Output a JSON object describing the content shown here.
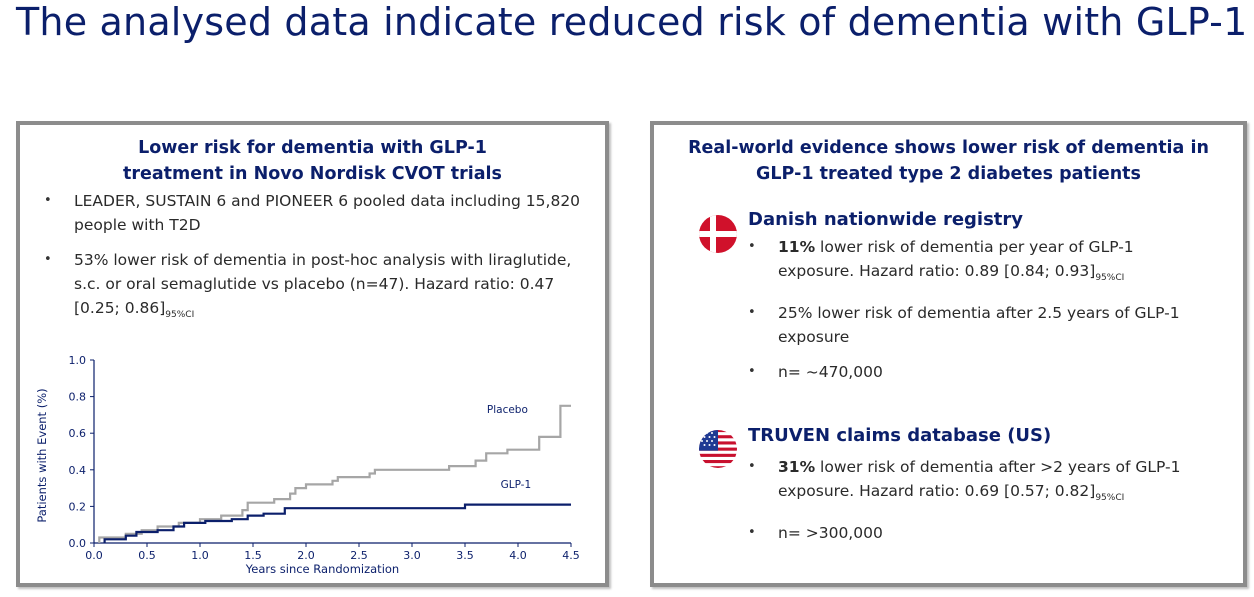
{
  "title": "The analysed data indicate reduced risk of dementia with GLP-1",
  "left_panel": {
    "heading_line1": "Lower risk for dementia with GLP-1",
    "heading_line2": "treatment in Novo Nordisk CVOT trials",
    "bullet1": "LEADER, SUSTAIN 6 and PIONEER 6 pooled data including 15,820 people with T2D",
    "bullet2_text": "53% lower risk of dementia in post-hoc analysis with liraglutide, s.c. or oral semaglutide vs placebo (n=47). Hazard ratio: 0.47 [0.25; 0.86]",
    "bullet2_sub": "95%CI"
  },
  "chart_data": {
    "type": "line",
    "xlabel": "Years since Randomization",
    "ylabel": "Patients with Event (%)",
    "xlim": [
      0,
      4.5
    ],
    "ylim": [
      0,
      1.0
    ],
    "xticks": [
      "0.0",
      "0.5",
      "1.0",
      "1.5",
      "2.0",
      "2.5",
      "3.0",
      "3.5",
      "4.0",
      "4.5"
    ],
    "yticks": [
      "0.0",
      "0.2",
      "0.4",
      "0.6",
      "0.8",
      "1.0"
    ],
    "grid": false,
    "series": [
      {
        "name": "Placebo",
        "color": "#a6a6a6",
        "points": [
          [
            0.05,
            0
          ],
          [
            0.05,
            0.03
          ],
          [
            0.3,
            0.03
          ],
          [
            0.3,
            0.05
          ],
          [
            0.45,
            0.05
          ],
          [
            0.45,
            0.07
          ],
          [
            0.6,
            0.07
          ],
          [
            0.6,
            0.09
          ],
          [
            0.8,
            0.09
          ],
          [
            0.8,
            0.11
          ],
          [
            1.0,
            0.11
          ],
          [
            1.0,
            0.13
          ],
          [
            1.2,
            0.13
          ],
          [
            1.2,
            0.15
          ],
          [
            1.4,
            0.15
          ],
          [
            1.4,
            0.18
          ],
          [
            1.45,
            0.18
          ],
          [
            1.45,
            0.22
          ],
          [
            1.7,
            0.22
          ],
          [
            1.7,
            0.24
          ],
          [
            1.85,
            0.24
          ],
          [
            1.85,
            0.27
          ],
          [
            1.9,
            0.27
          ],
          [
            1.9,
            0.3
          ],
          [
            2.0,
            0.3
          ],
          [
            2.0,
            0.32
          ],
          [
            2.25,
            0.32
          ],
          [
            2.25,
            0.34
          ],
          [
            2.3,
            0.34
          ],
          [
            2.3,
            0.36
          ],
          [
            2.6,
            0.36
          ],
          [
            2.6,
            0.38
          ],
          [
            2.65,
            0.38
          ],
          [
            2.65,
            0.4
          ],
          [
            3.35,
            0.4
          ],
          [
            3.35,
            0.42
          ],
          [
            3.6,
            0.42
          ],
          [
            3.6,
            0.45
          ],
          [
            3.7,
            0.45
          ],
          [
            3.7,
            0.49
          ],
          [
            3.9,
            0.49
          ],
          [
            3.9,
            0.51
          ],
          [
            4.2,
            0.51
          ],
          [
            4.2,
            0.58
          ],
          [
            4.4,
            0.58
          ],
          [
            4.4,
            0.75
          ],
          [
            4.5,
            0.75
          ]
        ]
      },
      {
        "name": "GLP-1",
        "color": "#0b1f6b",
        "points": [
          [
            0.1,
            0
          ],
          [
            0.1,
            0.02
          ],
          [
            0.3,
            0.02
          ],
          [
            0.3,
            0.04
          ],
          [
            0.4,
            0.04
          ],
          [
            0.4,
            0.06
          ],
          [
            0.6,
            0.06
          ],
          [
            0.6,
            0.07
          ],
          [
            0.75,
            0.07
          ],
          [
            0.75,
            0.09
          ],
          [
            0.85,
            0.09
          ],
          [
            0.85,
            0.11
          ],
          [
            1.05,
            0.11
          ],
          [
            1.05,
            0.12
          ],
          [
            1.3,
            0.12
          ],
          [
            1.3,
            0.13
          ],
          [
            1.45,
            0.13
          ],
          [
            1.45,
            0.15
          ],
          [
            1.6,
            0.15
          ],
          [
            1.6,
            0.16
          ],
          [
            1.8,
            0.16
          ],
          [
            1.8,
            0.19
          ],
          [
            3.5,
            0.19
          ],
          [
            3.5,
            0.21
          ],
          [
            4.5,
            0.21
          ]
        ]
      }
    ]
  },
  "right_panel": {
    "heading_line1": "Real-world evidence shows lower risk of dementia in",
    "heading_line2": "GLP-1 treated type 2 diabetes patients",
    "danish": {
      "flag_icon": "denmark-flag-icon",
      "heading": "Danish nationwide registry",
      "b1_bold": "11%",
      "b1_text": " lower risk of dementia per year of GLP-1 exposure. Hazard ratio: 0.89 [0.84; 0.93]",
      "b1_sub": "95%CI",
      "b2": "25% lower risk of dementia after 2.5 years of GLP-1 exposure",
      "b3": "n= ~470,000"
    },
    "truven": {
      "flag_icon": "usa-flag-icon",
      "heading": "TRUVEN claims database (US)",
      "b1_bold": "31%",
      "b1_text": " lower risk of dementia after >2 years of GLP-1 exposure. Hazard ratio: 0.69 [0.57; 0.82]",
      "b1_sub": "95%CI",
      "b2": "n= >300,000"
    }
  }
}
